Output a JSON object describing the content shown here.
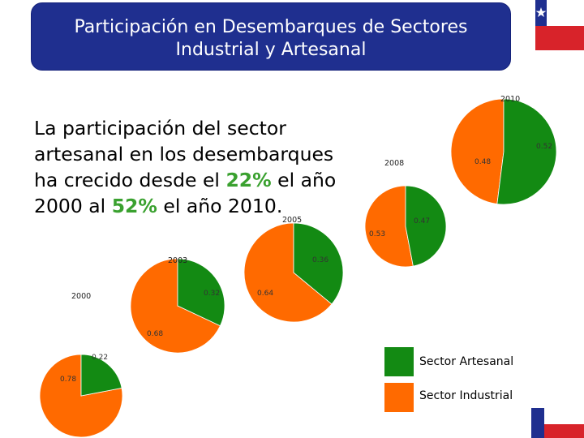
{
  "title": {
    "line1": "Participación en Desembarques de Sectores",
    "line2": "Industrial y Artesanal"
  },
  "body": {
    "line1": "La participación del sector",
    "line2": "artesanal en los desembarques",
    "line3_pre": "ha crecido desde el ",
    "line3_hl": "22%",
    "line3_post": " el año",
    "line4_pre": "2000 al ",
    "line4_hl": "52%",
    "line4_post": " el año 2010."
  },
  "colors": {
    "artesanal": "#138a13",
    "industrial": "#ff6a00",
    "title_bg": "#1f2f8f",
    "highlight": "#3aa12f"
  },
  "legend": {
    "artesanal": "Sector Artesanal",
    "industrial": "Sector Industrial"
  },
  "chart_data": {
    "type": "pie",
    "title": "Participación en Desembarques de Sectores Industrial y Artesanal",
    "series_names": [
      "Sector Artesanal",
      "Sector Industrial"
    ],
    "pies": [
      {
        "year": "2000",
        "artesanal": 0.22,
        "industrial": 0.78,
        "artesanal_label": "0.22",
        "industrial_label": "0.78"
      },
      {
        "year": "2003",
        "artesanal": 0.32,
        "industrial": 0.68,
        "artesanal_label": "0.32",
        "industrial_label": "0.68"
      },
      {
        "year": "2005",
        "artesanal": 0.36,
        "industrial": 0.64,
        "artesanal_label": "0.36",
        "industrial_label": "0.64"
      },
      {
        "year": "2008",
        "artesanal": 0.47,
        "industrial": 0.53,
        "artesanal_label": "0.47",
        "industrial_label": "0.53"
      },
      {
        "year": "2010",
        "artesanal": 0.52,
        "industrial": 0.48,
        "artesanal_label": "0.52",
        "industrial_label": "0.48"
      }
    ]
  }
}
